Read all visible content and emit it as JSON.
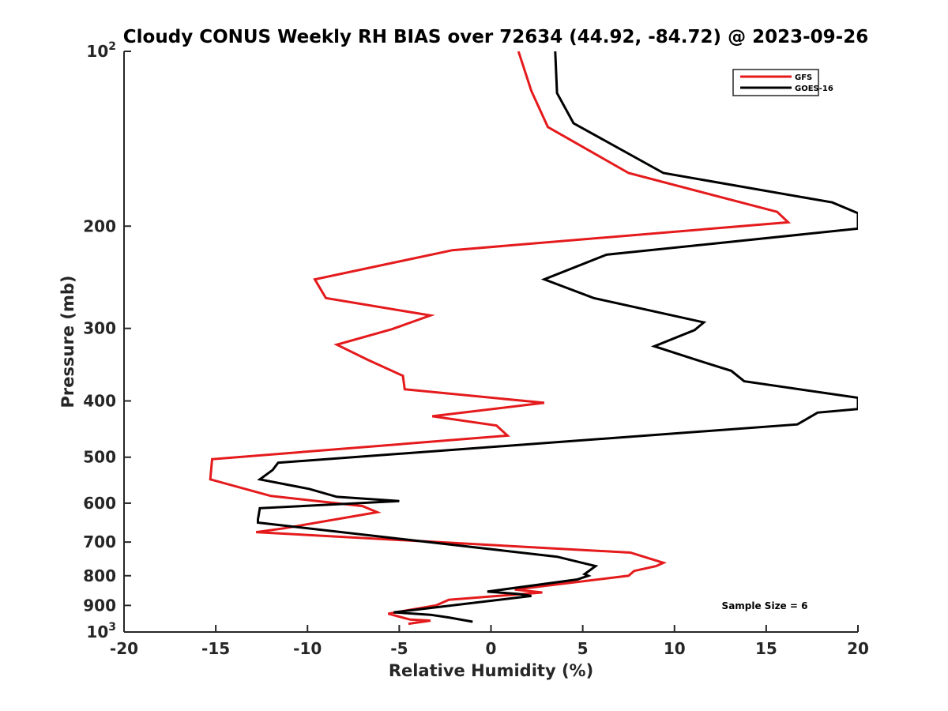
{
  "chart_data": {
    "type": "line",
    "title": "Cloudy CONUS Weekly RH BIAS over 72634 (44.92, -84.72) @ 2023-09-26",
    "xlabel": "Relative Humidity (%)",
    "ylabel": "Pressure (mb)",
    "xlim": [
      -20,
      20
    ],
    "ylim": [
      100,
      1000
    ],
    "yscale": "log",
    "y_reversed": true,
    "grid": false,
    "legend_position": "top-right",
    "x_ticks": [
      -20,
      -15,
      -10,
      -5,
      0,
      5,
      10,
      15,
      20
    ],
    "x_tick_labels": [
      "-20",
      "-15",
      "-10",
      "-5",
      "0",
      "5",
      "10",
      "15",
      "20"
    ],
    "y_ticks": [
      100,
      200,
      300,
      400,
      500,
      600,
      700,
      800,
      900,
      1000
    ],
    "y_tick_labels": [
      {
        "base": "10",
        "exp": "2"
      },
      {
        "base": "200",
        "exp": ""
      },
      {
        "base": "300",
        "exp": ""
      },
      {
        "base": "400",
        "exp": ""
      },
      {
        "base": "500",
        "exp": ""
      },
      {
        "base": "600",
        "exp": ""
      },
      {
        "base": "700",
        "exp": ""
      },
      {
        "base": "800",
        "exp": ""
      },
      {
        "base": "900",
        "exp": ""
      },
      {
        "base": "10",
        "exp": "3"
      }
    ],
    "annotation": "Sample Size = 6",
    "series": [
      {
        "name": "GFS",
        "color": "#e41a1c",
        "x": [
          1.5,
          2.2,
          3.1,
          7.5,
          15.6,
          16.2,
          -2.1,
          -9.6,
          -9.0,
          -3.3,
          -5.4,
          -8.4,
          -6.7,
          -4.8,
          -4.7,
          2.9,
          -3.2,
          0.3,
          0.9,
          -15.2,
          -15.3,
          -12.0,
          -7.0,
          -6.2,
          -11.3,
          -12.8,
          7.6,
          9.4,
          9.0,
          7.8,
          7.5,
          1.3,
          2.8,
          -2.3,
          -3.0,
          -5.6,
          -4.4,
          -3.3,
          -4.5
        ],
        "y": [
          100,
          117,
          135,
          162,
          189,
          197,
          220,
          247,
          266,
          285,
          301,
          320,
          340,
          362,
          382,
          403,
          425,
          441,
          459,
          504,
          546,
          583,
          607,
          622,
          663,
          673,
          730,
          760,
          770,
          785,
          800,
          845,
          855,
          880,
          900,
          930,
          952,
          956,
          968
        ]
      },
      {
        "name": "GOES-16",
        "color": "#000000",
        "x": [
          3.5,
          3.6,
          4.5,
          9.4,
          18.6,
          20.0,
          20.0,
          6.3,
          2.9,
          5.6,
          11.6,
          11.1,
          8.9,
          11.2,
          13.1,
          13.8,
          20.0,
          20.0,
          17.8,
          16.7,
          -11.6,
          -11.9,
          -12.6,
          -9.9,
          -8.4,
          -5.0,
          -12.6,
          -12.7,
          -12.7,
          3.6,
          5.7,
          5.1,
          5.3,
          4.7,
          -0.2,
          1.5,
          2.2,
          -5.3,
          -3.3,
          -2.3,
          -1.0
        ],
        "y": [
          100,
          118,
          133,
          162,
          182,
          190,
          202,
          224,
          247,
          266,
          293,
          302,
          322,
          340,
          355,
          370,
          395,
          413,
          419,
          439,
          511,
          526,
          546,
          567,
          585,
          595,
          612,
          640,
          648,
          742,
          770,
          795,
          800,
          812,
          852,
          860,
          867,
          925,
          934,
          944,
          960
        ]
      }
    ]
  }
}
